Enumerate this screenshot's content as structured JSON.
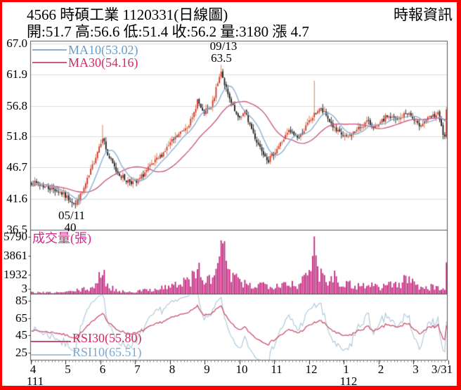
{
  "header": {
    "title": "4566 時碩工業 1120331(日線圖)",
    "source": "時報資訊",
    "quote_line": "開:51.7 高:56.6 低:51.4 收:56.2 量:3180 漲 4.7"
  },
  "chart_data": {
    "type": "candlestick",
    "title": "4566 時碩工業 1120331 日線圖",
    "x_range": "111/4 to 112/3/31 (daily)",
    "legend": {
      "ma10": "MA10(53.02)",
      "ma30": "MA30(54.16)",
      "volume_label": "成交量(張)",
      "rsi30": "RSI30(55.80)",
      "rsi10": "RSI10(65.51)"
    },
    "last_quote": {
      "open": 51.7,
      "high": 56.6,
      "low": 51.4,
      "close": 56.2,
      "volume": 3180,
      "change": 4.7
    },
    "price_axis": {
      "ticks": [
        "67.0",
        "61.9",
        "56.8",
        "51.8",
        "46.7",
        "41.6",
        "36.5"
      ],
      "max": 67.0,
      "min": 36.5
    },
    "volume_axis": {
      "ticks": [
        "5790",
        "3861",
        "1932",
        "3"
      ],
      "max": 5790
    },
    "rsi_axis": {
      "ticks": [
        "85",
        "65",
        "45",
        "25"
      ]
    },
    "x_axis": {
      "month_labels": [
        "4",
        "5",
        "6",
        "7",
        "8",
        "9",
        "10",
        "11",
        "12",
        "1",
        "2",
        "3",
        "3/31"
      ],
      "year_labels": [
        {
          "text": "111",
          "center_x": 50
        },
        {
          "text": "112",
          "center_x": 496
        }
      ]
    },
    "annotations": [
      {
        "date": "05/11",
        "value": "40",
        "kind": "low"
      },
      {
        "date": "09/13",
        "value": "63.5",
        "kind": "high"
      }
    ],
    "days": 246,
    "price_anchors": [
      [
        0,
        44.3
      ],
      [
        8,
        43.6
      ],
      [
        16,
        42.9
      ],
      [
        21,
        41.8
      ],
      [
        26,
        40.8
      ],
      [
        30,
        42.6
      ],
      [
        34,
        45.3
      ],
      [
        38,
        48.6
      ],
      [
        42,
        51.8
      ],
      [
        45,
        48.8
      ],
      [
        50,
        46.2
      ],
      [
        56,
        44.6
      ],
      [
        62,
        44.2
      ],
      [
        68,
        46.2
      ],
      [
        75,
        48.2
      ],
      [
        82,
        50.6
      ],
      [
        88,
        52.4
      ],
      [
        95,
        54.6
      ],
      [
        98,
        57.8
      ],
      [
        101,
        55.6
      ],
      [
        106,
        56.4
      ],
      [
        112,
        62.5
      ],
      [
        116,
        58.4
      ],
      [
        122,
        54.6
      ],
      [
        126,
        55.8
      ],
      [
        133,
        51.0
      ],
      [
        140,
        47.9
      ],
      [
        146,
        50.2
      ],
      [
        152,
        52.6
      ],
      [
        158,
        51.6
      ],
      [
        164,
        54.2
      ],
      [
        170,
        56.4
      ],
      [
        174,
        55.2
      ],
      [
        180,
        52.6
      ],
      [
        186,
        51.6
      ],
      [
        192,
        52.8
      ],
      [
        198,
        54.2
      ],
      [
        204,
        53.2
      ],
      [
        210,
        55.2
      ],
      [
        216,
        54.4
      ],
      [
        222,
        55.8
      ],
      [
        228,
        53.6
      ],
      [
        234,
        54.6
      ],
      [
        240,
        55.4
      ],
      [
        243,
        52.2
      ],
      [
        244,
        51.8
      ],
      [
        245,
        56.2
      ]
    ],
    "volume_anchors": [
      [
        0,
        160
      ],
      [
        10,
        140
      ],
      [
        20,
        180
      ],
      [
        26,
        320
      ],
      [
        34,
        520
      ],
      [
        38,
        900
      ],
      [
        42,
        1900
      ],
      [
        46,
        700
      ],
      [
        52,
        260
      ],
      [
        60,
        220
      ],
      [
        68,
        380
      ],
      [
        75,
        560
      ],
      [
        82,
        760
      ],
      [
        88,
        980
      ],
      [
        95,
        1500
      ],
      [
        99,
        2300
      ],
      [
        103,
        1100
      ],
      [
        108,
        1600
      ],
      [
        112,
        5400
      ],
      [
        115,
        2600
      ],
      [
        120,
        1400
      ],
      [
        126,
        900
      ],
      [
        132,
        800
      ],
      [
        138,
        1000
      ],
      [
        144,
        900
      ],
      [
        150,
        1100
      ],
      [
        156,
        900
      ],
      [
        162,
        1400
      ],
      [
        166,
        2800
      ],
      [
        167,
        5790
      ],
      [
        169,
        2400
      ],
      [
        173,
        1600
      ],
      [
        178,
        1800
      ],
      [
        183,
        1200
      ],
      [
        188,
        900
      ],
      [
        194,
        800
      ],
      [
        200,
        900
      ],
      [
        206,
        700
      ],
      [
        212,
        1000
      ],
      [
        218,
        900
      ],
      [
        222,
        1600
      ],
      [
        228,
        800
      ],
      [
        234,
        700
      ],
      [
        240,
        600
      ],
      [
        244,
        500
      ],
      [
        245,
        3180
      ]
    ],
    "colors": {
      "frame": "#fe0000",
      "up_body": "#d2332a",
      "up_wick": "#e06a3a",
      "down_body": "#1c1c1c",
      "ma10_line": "#8ab0d2",
      "ma30_line": "#c75b84",
      "volume_bar": "#c2267e",
      "rsi10_line": "#a9c6da",
      "rsi30_line": "#cb4f6e",
      "grid": "#dcdcdc",
      "axis": "#555555",
      "ma10_text": "#6b9cc7",
      "ma30_text": "#cf2a68",
      "volume_text": "#cf2a8a",
      "rsi30_text": "#cf2a5e",
      "rsi10_text": "#7fa8cb"
    }
  }
}
